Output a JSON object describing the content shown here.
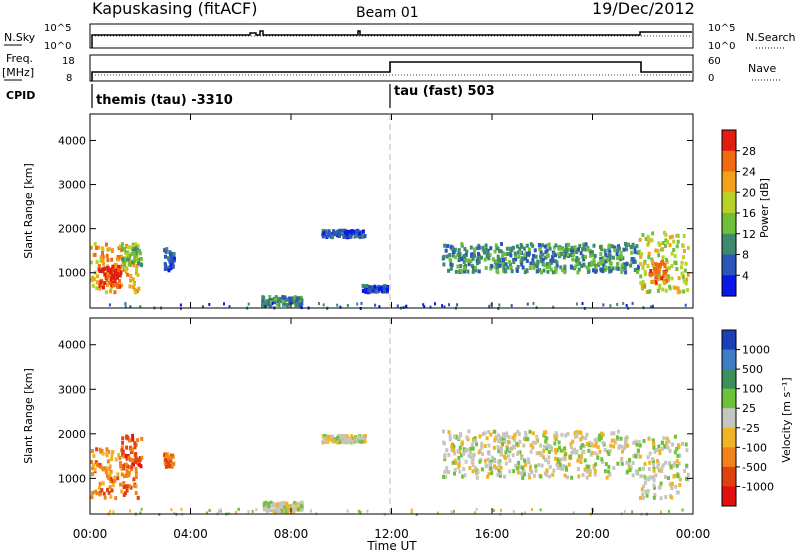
{
  "header": {
    "station": "Kapuskasing (fitACF)",
    "beam": "Beam 01",
    "date": "19/Dec/2012"
  },
  "params": {
    "nsky_label": "N.Sky",
    "nsky_ticks": [
      "10^5",
      "10^0"
    ],
    "nsearch_label": "N.Search",
    "nsearch_ticks": [
      "10^5",
      "10^0"
    ],
    "freq_label": "Freq.",
    "freq_unit": "[MHz]",
    "freq_ticks": [
      "18",
      "8"
    ],
    "nave_label": "Nave",
    "nave_ticks": [
      "60",
      "0"
    ],
    "cpid_label": "CPID",
    "cpid_1": "themis (tau) -3310",
    "cpid_2": "tau (fast) 503"
  },
  "chart_data": [
    {
      "type": "heatmap",
      "panel": "power",
      "ylabel": "Slant Range [km]",
      "yticks": [
        "1000",
        "2000",
        "3000",
        "4000"
      ],
      "ylim": [
        200,
        4600
      ],
      "xlim": [
        0,
        24
      ],
      "xticks": [
        "00:00",
        "04:00",
        "08:00",
        "12:00",
        "16:00",
        "20:00",
        "00:00"
      ],
      "colorbar_label": "Power [dB]",
      "colorbar_ticks": [
        "4",
        "8",
        "12",
        "16",
        "20",
        "24",
        "28"
      ],
      "colorbar_colors": [
        "#0a18e6",
        "#2a57b8",
        "#3f8a6e",
        "#6ebf3a",
        "#b8d22a",
        "#f2a21a",
        "#f06a10",
        "#e11d10"
      ],
      "blobs": [
        {
          "t0": 0.0,
          "t1": 1.9,
          "r0": 600,
          "r1": 1700,
          "level": 5
        },
        {
          "t0": 0.3,
          "t1": 1.2,
          "r0": 700,
          "r1": 1200,
          "level": 7
        },
        {
          "t0": 1.2,
          "t1": 2.0,
          "r0": 1200,
          "r1": 1700,
          "level": 3
        },
        {
          "t0": 2.9,
          "t1": 3.3,
          "r0": 1100,
          "r1": 1600,
          "level": 1
        },
        {
          "t0": 6.8,
          "t1": 8.4,
          "r0": 300,
          "r1": 500,
          "level": 2
        },
        {
          "t0": 9.2,
          "t1": 10.9,
          "r0": 1850,
          "r1": 2000,
          "level": 1
        },
        {
          "t0": 10.8,
          "t1": 11.8,
          "r0": 600,
          "r1": 750,
          "level": 1
        },
        {
          "t0": 14.0,
          "t1": 21.8,
          "r0": 1050,
          "r1": 1700,
          "level": 2
        },
        {
          "t0": 21.8,
          "t1": 23.8,
          "r0": 600,
          "r1": 2000,
          "level": 4
        },
        {
          "t0": 22.2,
          "t1": 22.9,
          "r0": 800,
          "r1": 1300,
          "level": 6
        }
      ]
    },
    {
      "type": "heatmap",
      "panel": "velocity",
      "ylabel": "Slant Range [km]",
      "yticks": [
        "1000",
        "2000",
        "3000",
        "4000"
      ],
      "ylim": [
        200,
        4600
      ],
      "xlim": [
        0,
        24
      ],
      "xlabel": "Time UT",
      "xticks": [
        "00:00",
        "04:00",
        "08:00",
        "12:00",
        "16:00",
        "20:00",
        "00:00"
      ],
      "colorbar_label": "Velocity [m s⁻¹]",
      "colorbar_ticks": [
        "1000",
        "500",
        "100",
        "25",
        "-25",
        "-100",
        "-500",
        "-1000"
      ],
      "colorbar_colors": [
        "#1c3fb8",
        "#3f7ec4",
        "#3d8f5c",
        "#6cc23a",
        "#c6c6c0",
        "#f2b426",
        "#f2821a",
        "#e0420f",
        "#e11010"
      ],
      "blobs": [
        {
          "t0": 0.0,
          "t1": 1.9,
          "r0": 600,
          "r1": 1700,
          "level": 6
        },
        {
          "t0": 1.2,
          "t1": 2.0,
          "r0": 1300,
          "r1": 2000,
          "level": 7
        },
        {
          "t0": 2.9,
          "t1": 3.3,
          "r0": 1300,
          "r1": 1600,
          "level": 6
        },
        {
          "t0": 6.8,
          "t1": 8.4,
          "r0": 300,
          "r1": 500,
          "level": 4
        },
        {
          "t0": 9.2,
          "t1": 10.9,
          "r0": 1850,
          "r1": 2000,
          "level": 4
        },
        {
          "t0": 14.0,
          "t1": 21.8,
          "r0": 1050,
          "r1": 2100,
          "level": 4
        },
        {
          "t0": 21.8,
          "t1": 23.8,
          "r0": 600,
          "r1": 2000,
          "level": 4
        }
      ]
    }
  ]
}
